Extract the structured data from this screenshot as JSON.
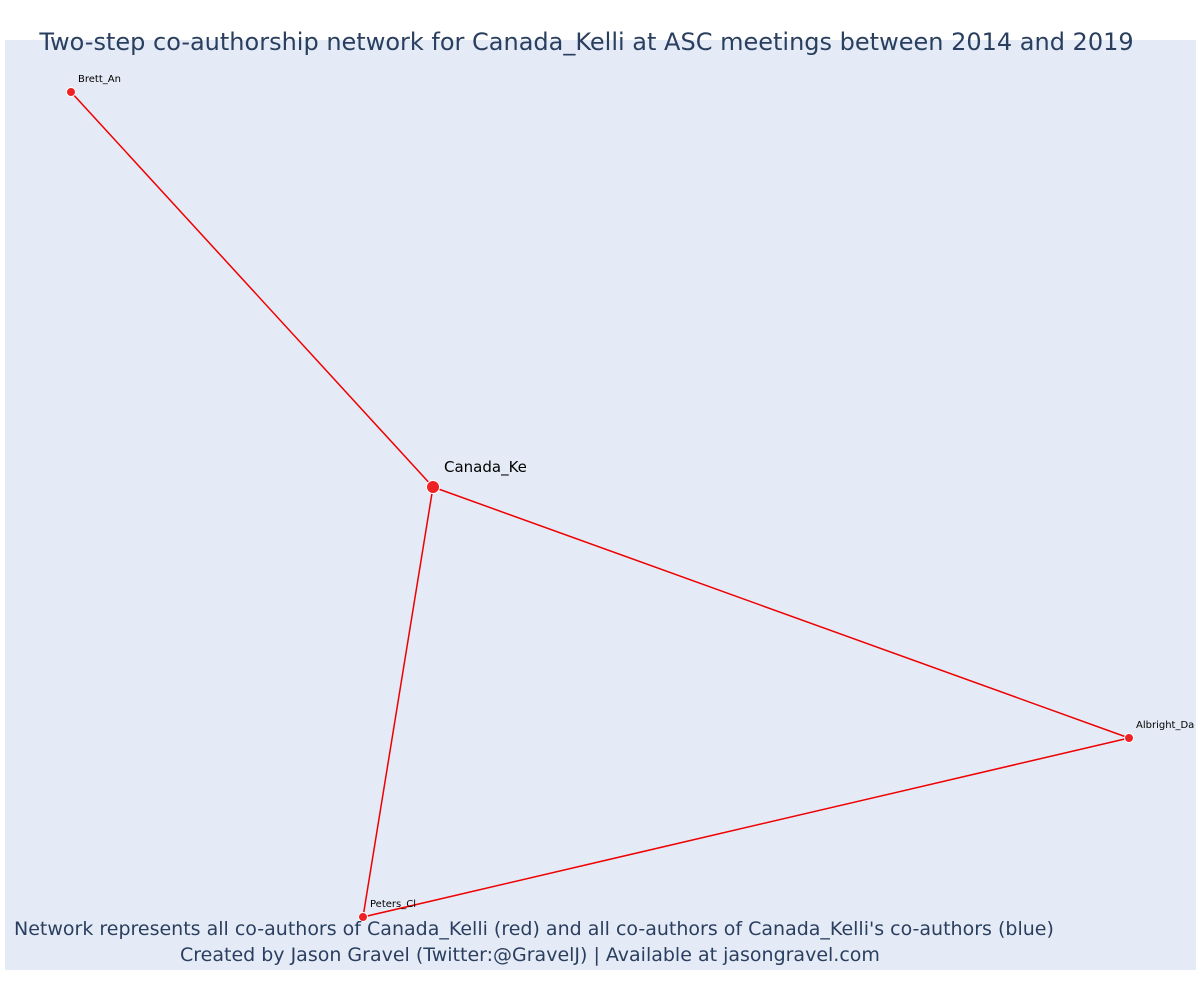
{
  "title": "Two-step co-authorship network for Canada_Kelli at ASC meetings between 2014 and 2019",
  "caption": {
    "line1": "Network represents all co-authors of Canada_Kelli (red) and all co-authors of Canada_Kelli's co-authors (blue)",
    "line2": "Created by Jason Gravel (Twitter:@GravelJ) | Available at jasongravel.com"
  },
  "colors": {
    "background": "#e5ebf6",
    "edge": "#ee0000",
    "node": "#ee2222",
    "node_stroke": "#ffffff",
    "text": "#2a3f5f"
  },
  "network": {
    "nodes": [
      {
        "id": "Canada_Ke",
        "label": "Canada_Ke",
        "role": "focal",
        "color": "red"
      },
      {
        "id": "Brett_An",
        "label": "Brett_An",
        "role": "co-author",
        "color": "red"
      },
      {
        "id": "Albright_Da",
        "label": "Albright_Da",
        "role": "co-author",
        "color": "red"
      },
      {
        "id": "Peters_Cl",
        "label": "Peters_Cl",
        "role": "co-author",
        "color": "red"
      }
    ],
    "edges": [
      {
        "source": "Canada_Ke",
        "target": "Brett_An"
      },
      {
        "source": "Canada_Ke",
        "target": "Albright_Da"
      },
      {
        "source": "Canada_Ke",
        "target": "Peters_Cl"
      },
      {
        "source": "Peters_Cl",
        "target": "Albright_Da"
      }
    ]
  }
}
